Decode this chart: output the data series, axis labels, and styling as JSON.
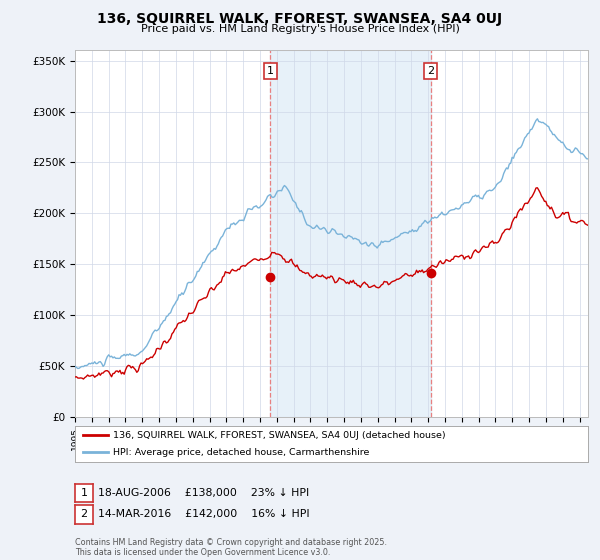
{
  "title": "136, SQUIRREL WALK, FFOREST, SWANSEA, SA4 0UJ",
  "subtitle": "Price paid vs. HM Land Registry's House Price Index (HPI)",
  "ylim": [
    0,
    360000
  ],
  "yticks": [
    0,
    50000,
    100000,
    150000,
    200000,
    250000,
    300000,
    350000
  ],
  "ytick_labels": [
    "£0",
    "£50K",
    "£100K",
    "£150K",
    "£200K",
    "£250K",
    "£300K",
    "£350K"
  ],
  "hpi_color": "#7ab3d9",
  "price_color": "#cc0000",
  "vline_color": "#e88080",
  "sale1_date_idx": 139,
  "sale2_date_idx": 253,
  "sale1_price": 138000,
  "sale2_price": 142000,
  "legend1": "136, SQUIRREL WALK, FFOREST, SWANSEA, SA4 0UJ (detached house)",
  "legend2": "HPI: Average price, detached house, Carmarthenshire",
  "footer": "Contains HM Land Registry data © Crown copyright and database right 2025.\nThis data is licensed under the Open Government Licence v3.0.",
  "background_color": "#eef2f8",
  "plot_bg": "#ffffff",
  "xmin": 1995.0,
  "xmax": 2025.5,
  "n_months": 366
}
